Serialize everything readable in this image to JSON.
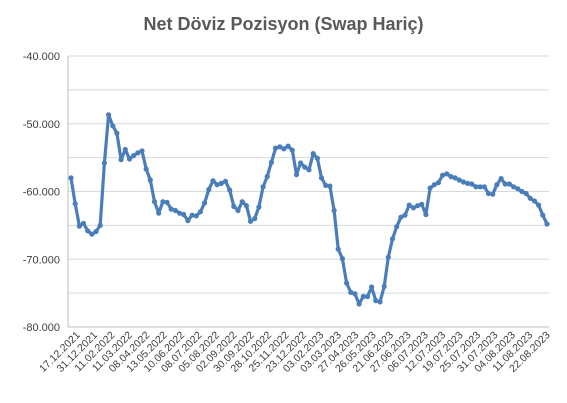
{
  "chart_data": {
    "type": "line",
    "title": "Net Döviz Pozisyon (Swap Hariç)",
    "xlabel": "",
    "ylabel": "",
    "ylim": [
      -80000,
      -40000
    ],
    "yticks": [
      -40000,
      -50000,
      -60000,
      -70000,
      -80000
    ],
    "ytick_labels": [
      "-40.000",
      "-50.000",
      "-60.000",
      "-70.000",
      "-80.000"
    ],
    "grid": "horizontal",
    "legend": "none",
    "colors": {
      "line": "#4a7ebb",
      "grid": "#d9d9d9",
      "axis": "#bfbfbf"
    },
    "x_labels": [
      "17.12.2021",
      "31.12.2021",
      "11.02.2022",
      "11.03.2022",
      "08.04.2022",
      "13.05.2022",
      "10.06.2022",
      "08.07.2022",
      "05.08.2022",
      "02.09.2022",
      "30.09.2022",
      "28.10.2022",
      "25.11.2022",
      "23.12.2022",
      "03.02.2023",
      "03.03.2023",
      "27.04.2023",
      "26.05.2023",
      "21.06.2023",
      "27.06.2023",
      "06.07.2023",
      "12.07.2023",
      "19.07.2023",
      "25.07.2023",
      "31.07.2023",
      "04.08.2023",
      "11.08.2023",
      "22.08.2023"
    ],
    "series": [
      {
        "values": [
          -58000,
          -61800,
          -65100,
          -64700,
          -65800,
          -66300,
          -65900,
          -65000,
          -55800,
          -48700,
          -50300,
          -51400,
          -55300,
          -53800,
          -55200,
          -54700,
          -54300,
          -54000,
          -56700,
          -58300,
          -61500,
          -63200,
          -61500,
          -61600,
          -62600,
          -62800,
          -63200,
          -63400,
          -64300,
          -63500,
          -63600,
          -63000,
          -61700,
          -59700,
          -58400,
          -59000,
          -58800,
          -58500,
          -59800,
          -62200,
          -62800,
          -61500,
          -62100,
          -64400,
          -64000,
          -62300,
          -59300,
          -57800,
          -55700,
          -53600,
          -53400,
          -53700,
          -53300,
          -53900,
          -57500,
          -55800,
          -56400,
          -56800,
          -54400,
          -55100,
          -58000,
          -59100,
          -59200,
          -62800,
          -68500,
          -69900,
          -73500,
          -74900,
          -75100,
          -76600,
          -75500,
          -75500,
          -74100,
          -76100,
          -76300,
          -74000,
          -69700,
          -67000,
          -65200,
          -63800,
          -63500,
          -62000,
          -62400,
          -62100,
          -61900,
          -63400,
          -59500,
          -59000,
          -58700,
          -57600,
          -57400,
          -57800,
          -58000,
          -58300,
          -58600,
          -58800,
          -58900,
          -59300,
          -59300,
          -59300,
          -60300,
          -60400,
          -59000,
          -58100,
          -58900,
          -58900,
          -59300,
          -59600,
          -60000,
          -60300,
          -61000,
          -61400,
          -62000,
          -63500,
          -64800
        ]
      }
    ]
  }
}
